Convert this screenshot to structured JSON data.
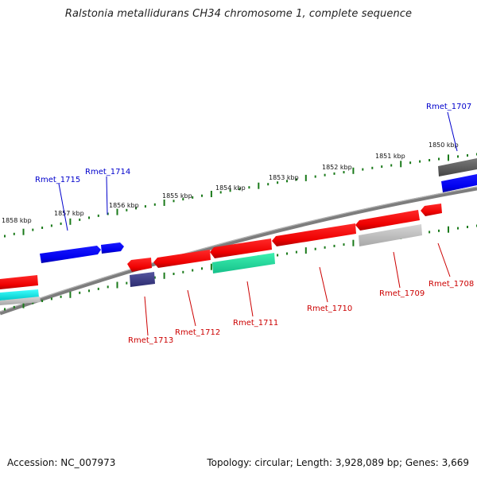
{
  "title": "Ralstonia metallidurans CH34 chromosome 1, complete sequence",
  "footer": {
    "accession": "Accession: NC_007973",
    "summary": "Topology: circular; Length: 3,928,089 bp; Genes: 3,669"
  },
  "colors": {
    "backbone": "#808080",
    "tick": "#1a7a1a",
    "label_forward": "#0000cc",
    "label_reverse": "#cc0000",
    "gene_red": "#ee0000",
    "gene_blue": "#0000ee",
    "gene_cyan": "#00e6e6",
    "gene_green": "#22e0a0",
    "gene_grey": "#c0c0c0",
    "gene_darkgrey": "#666666",
    "gene_navy": "#3b3b8f"
  },
  "kbp_labels": [
    "1858 kbp",
    "1857 kbp",
    "1856 kbp",
    "1855 kbp",
    "1854 kbp",
    "1853 kbp",
    "1852 kbp",
    "1851 kbp",
    "1850 kbp"
  ],
  "forward_genes": [
    "Rmet_1715",
    "Rmet_1714",
    "Rmet_1707"
  ],
  "reverse_genes": [
    "Rmet_1713",
    "Rmet_1712",
    "Rmet_1711",
    "Rmet_1710",
    "Rmet_1709",
    "Rmet_1708"
  ]
}
